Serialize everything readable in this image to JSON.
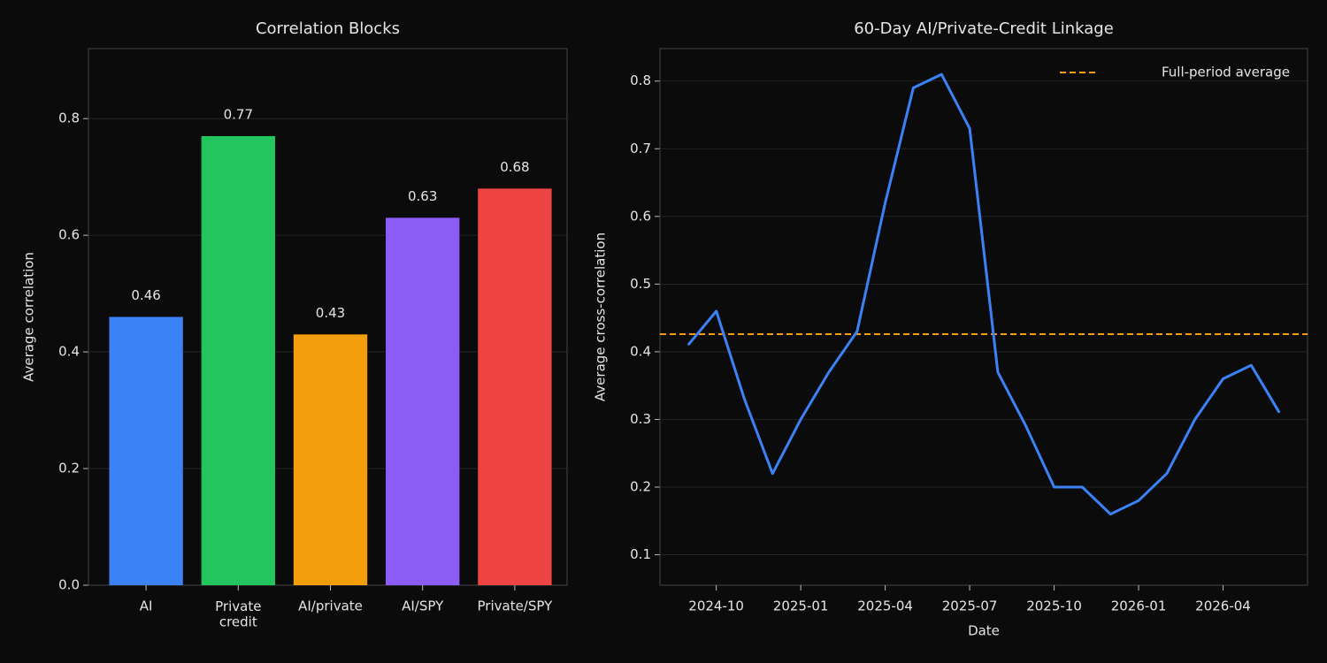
{
  "chart_data": [
    {
      "type": "bar",
      "title": "Correlation Blocks",
      "y_label": "Average correlation",
      "categories": [
        "AI",
        "Private\ncredit",
        "AI/private",
        "AI/SPY",
        "Private/SPY"
      ],
      "values": [
        0.46,
        0.77,
        0.43,
        0.63,
        0.68
      ],
      "colors": [
        "#3b82f6",
        "#22c55e",
        "#f59e0b",
        "#8b5cf6",
        "#ef4444"
      ],
      "ylim": [
        0,
        0.92
      ],
      "yticks": [
        {
          "value": 0,
          "label": "0.0"
        },
        0.2,
        0.4,
        0.6,
        0.8
      ],
      "grid": true
    },
    {
      "type": "line",
      "title": "60-Day AI/Private-Credit Linkage",
      "x_label": "Date",
      "y_label": "Average cross-correlation",
      "x": [
        "2024-09",
        "2024-10",
        "2024-11",
        "2024-12",
        "2025-01",
        "2025-02",
        "2025-03",
        "2025-04",
        "2025-05",
        "2025-06",
        "2025-07",
        "2025-08",
        "2025-09",
        "2025-10",
        "2025-11",
        "2025-12",
        "2026-01",
        "2026-02",
        "2026-03",
        "2026-04",
        "2026-05",
        "2026-06"
      ],
      "series": [
        {
          "color": "#3b82f6",
          "values": [
            0.41,
            0.46,
            0.33,
            0.22,
            0.3,
            0.37,
            0.43,
            0.62,
            0.79,
            0.81,
            0.73,
            0.37,
            0.29,
            0.2,
            0.2,
            0.16,
            0.18,
            0.22,
            0.3,
            0.36,
            0.38,
            0.31
          ]
        }
      ],
      "reference_line": {
        "label": "Full-period average",
        "value": 0.426,
        "color": "#f59e0b"
      },
      "xlim": [
        "2024-08",
        "2026-07"
      ],
      "xticks": [
        "2024-10",
        "2025-01",
        "2025-04",
        "2025-07",
        "2025-10",
        "2026-01",
        "2026-04"
      ],
      "ylim": [
        0.055,
        0.848
      ],
      "yticks": [
        0.1,
        0.2,
        0.3,
        0.4,
        0.5,
        0.6,
        0.7,
        0.8
      ],
      "grid": true,
      "legend": "upper right"
    }
  ]
}
